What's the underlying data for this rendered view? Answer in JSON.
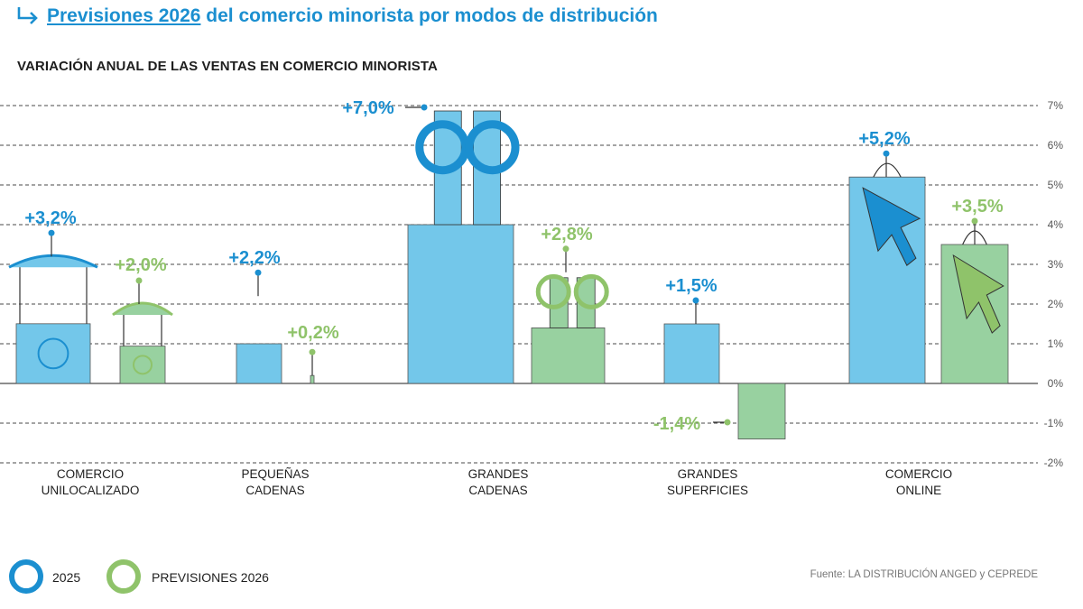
{
  "header": {
    "title_link": "Previsiones 2026",
    "title_rest": " del comercio minorista por modos de distribución",
    "subtitle": "VARIACIÓN ANUAL DE LAS VENTAS EN COMERCIO MINORISTA"
  },
  "colors": {
    "blue": "#1b8fd0",
    "blue_fill": "#73c7ea",
    "green": "#8fc36a",
    "green_fill": "#98d1a0",
    "grid": "#4a4a4a"
  },
  "chart_data": {
    "type": "bar",
    "title": "VARIACIÓN ANUAL DE LAS VENTAS EN COMERCIO MINORISTA",
    "categories": [
      [
        "COMERCIO",
        "UNILOCALIZADO"
      ],
      [
        "PEQUEÑAS",
        "CADENAS"
      ],
      [
        "GRANDES",
        "CADENAS"
      ],
      [
        "GRANDES",
        "SUPERFICIES"
      ],
      [
        "COMERCIO",
        "ONLINE"
      ]
    ],
    "series": [
      {
        "name": "2025",
        "values": [
          3.2,
          2.2,
          7.0,
          1.5,
          5.2
        ],
        "labels": [
          "+3,2%",
          "+2,2%",
          "+7,0%",
          "+1,5%",
          "+5,2%"
        ]
      },
      {
        "name": "PREVISIONES 2026",
        "values": [
          2.0,
          0.2,
          2.8,
          -1.4,
          3.5
        ],
        "labels": [
          "+2,0%",
          "+0,2%",
          "+2,8%",
          "-1,4%",
          "+3,5%"
        ]
      }
    ],
    "ylim": [
      -2,
      7
    ],
    "yticks": [
      7,
      6,
      5,
      4,
      3,
      2,
      1,
      0,
      -1,
      -2
    ],
    "ytick_labels": [
      "7%",
      "6%",
      "5%",
      "4%",
      "3%",
      "2%",
      "1%",
      "0%",
      "-1%",
      "-2%"
    ],
    "grid": true,
    "legend_position": "bottom-left"
  },
  "legend": [
    {
      "label": "2025",
      "color": "#1b8fd0"
    },
    {
      "label": "PREVISIONES 2026",
      "color": "#8fc36a"
    }
  ],
  "source": "Fuente: LA DISTRIBUCIÓN ANGED y CEPREDE"
}
